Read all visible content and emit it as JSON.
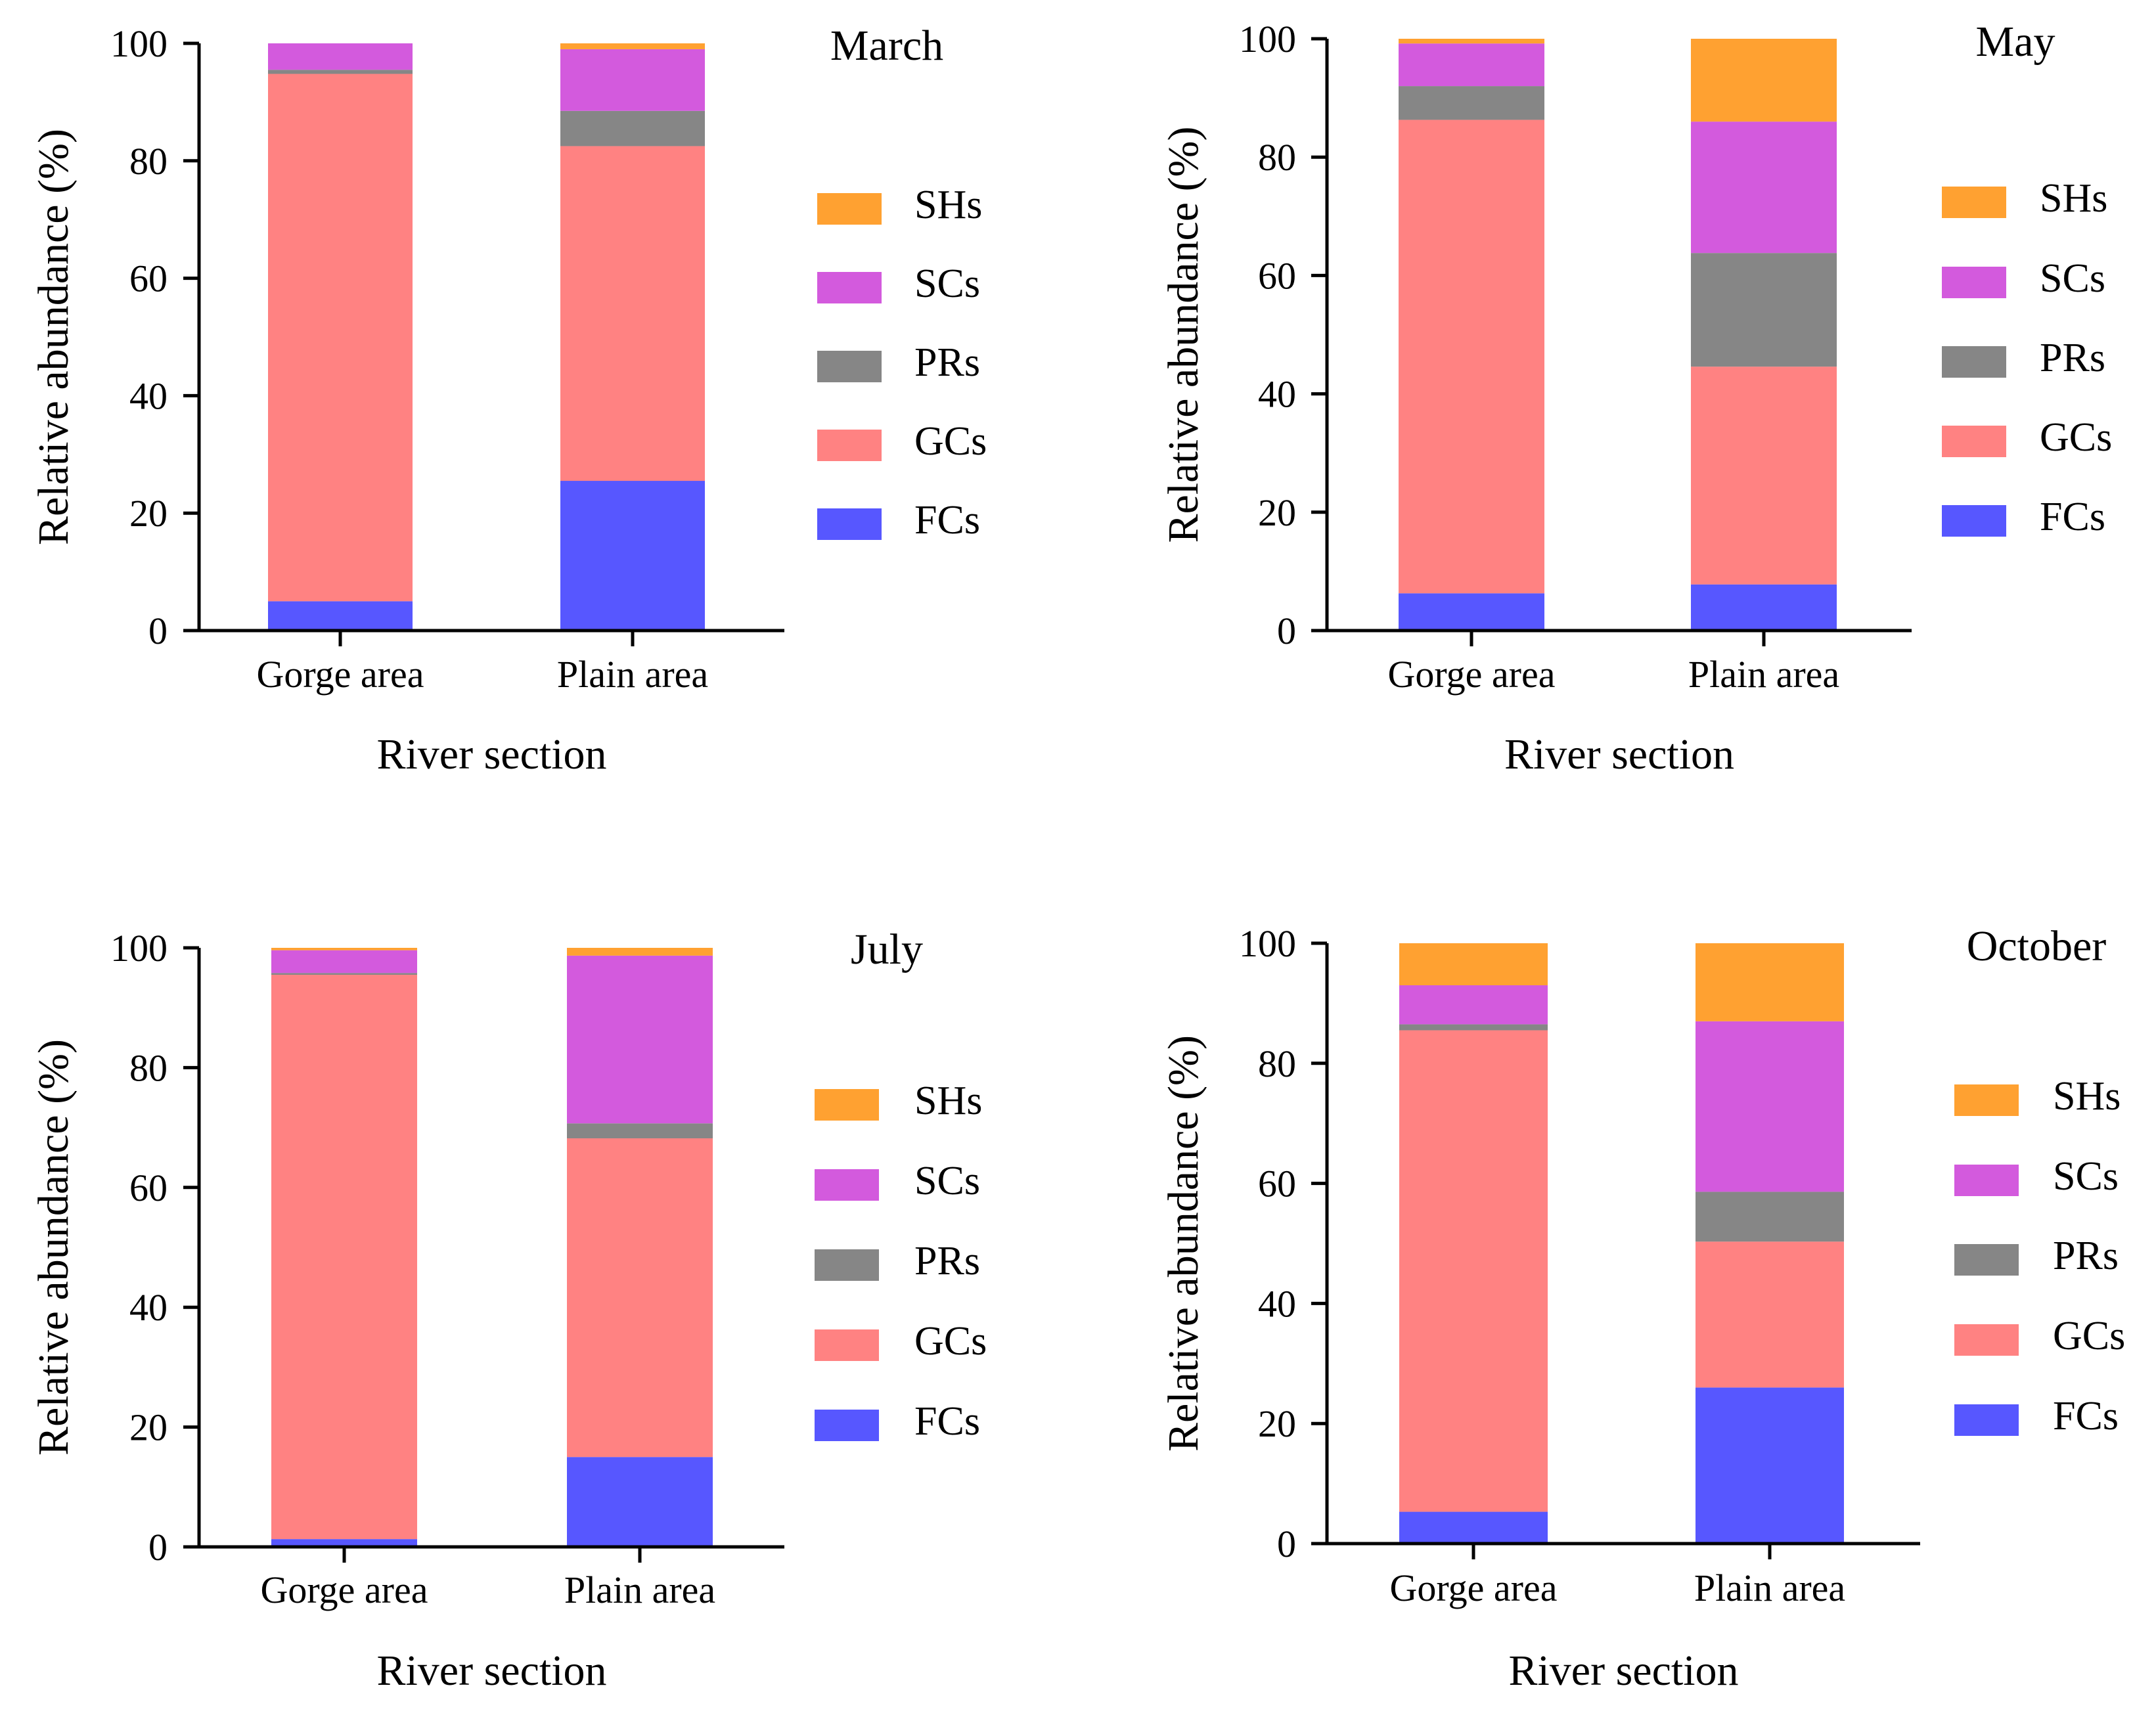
{
  "colors": {
    "SHs": "#ffa131",
    "SCs": "#d35add",
    "PRs": "#868686",
    "GCs": "#ff8282",
    "FCs": "#5757ff"
  },
  "chart_data": [
    {
      "type": "bar",
      "stacked": true,
      "title": "March",
      "xlabel": "River section",
      "ylabel": "Relative abundance (%)",
      "ylim": [
        0,
        100
      ],
      "yticks": [
        "0",
        "20",
        "40",
        "60",
        "80",
        "100"
      ],
      "categories": [
        "Gorge area",
        "Plain area"
      ],
      "legend": [
        "SHs",
        "SCs",
        "PRs",
        "GCs",
        "FCs"
      ],
      "legend_position": "right",
      "series": [
        {
          "name": "FCs",
          "values": [
            5,
            25.5
          ]
        },
        {
          "name": "GCs",
          "values": [
            89.8,
            57
          ]
        },
        {
          "name": "PRs",
          "values": [
            0.7,
            6
          ]
        },
        {
          "name": "SCs",
          "values": [
            4.5,
            10.5
          ]
        },
        {
          "name": "SHs",
          "values": [
            0,
            1
          ]
        }
      ]
    },
    {
      "type": "bar",
      "stacked": true,
      "title": "May",
      "xlabel": "River section",
      "ylabel": "Relative abundance (%)",
      "ylim": [
        0,
        100
      ],
      "yticks": [
        "0",
        "20",
        "40",
        "60",
        "80",
        "100"
      ],
      "categories": [
        "Gorge area",
        "Plain area"
      ],
      "legend": [
        "SHs",
        "SCs",
        "PRs",
        "GCs",
        "FCs"
      ],
      "legend_position": "right",
      "series": [
        {
          "name": "FCs",
          "values": [
            6.3,
            7.8
          ]
        },
        {
          "name": "GCs",
          "values": [
            80,
            36.8
          ]
        },
        {
          "name": "PRs",
          "values": [
            5.7,
            19.2
          ]
        },
        {
          "name": "SCs",
          "values": [
            7.2,
            22.2
          ]
        },
        {
          "name": "SHs",
          "values": [
            0.8,
            14
          ]
        }
      ]
    },
    {
      "type": "bar",
      "stacked": true,
      "title": "July",
      "xlabel": "River section",
      "ylabel": "Relative abundance (%)",
      "ylim": [
        0,
        100
      ],
      "yticks": [
        "0",
        "20",
        "40",
        "60",
        "80",
        "100"
      ],
      "categories": [
        "Gorge area",
        "Plain area"
      ],
      "legend": [
        "SHs",
        "SCs",
        "PRs",
        "GCs",
        "FCs"
      ],
      "legend_position": "right",
      "series": [
        {
          "name": "FCs",
          "values": [
            1.3,
            15
          ]
        },
        {
          "name": "GCs",
          "values": [
            94.2,
            53.2
          ]
        },
        {
          "name": "PRs",
          "values": [
            0.3,
            2.5
          ]
        },
        {
          "name": "SCs",
          "values": [
            3.8,
            28
          ]
        },
        {
          "name": "SHs",
          "values": [
            0.4,
            1.3
          ]
        }
      ]
    },
    {
      "type": "bar",
      "stacked": true,
      "title": "October",
      "xlabel": "River section",
      "ylabel": "Relative abundance (%)",
      "ylim": [
        0,
        100
      ],
      "yticks": [
        "0",
        "20",
        "40",
        "60",
        "80",
        "100"
      ],
      "categories": [
        "Gorge area",
        "Plain area"
      ],
      "legend": [
        "SHs",
        "SCs",
        "PRs",
        "GCs",
        "FCs"
      ],
      "legend_position": "right",
      "series": [
        {
          "name": "FCs",
          "values": [
            5.3,
            26
          ]
        },
        {
          "name": "GCs",
          "values": [
            80.2,
            24.3
          ]
        },
        {
          "name": "PRs",
          "values": [
            1,
            8.3
          ]
        },
        {
          "name": "SCs",
          "values": [
            6.5,
            28.4
          ]
        },
        {
          "name": "SHs",
          "values": [
            7,
            13
          ]
        }
      ]
    }
  ]
}
